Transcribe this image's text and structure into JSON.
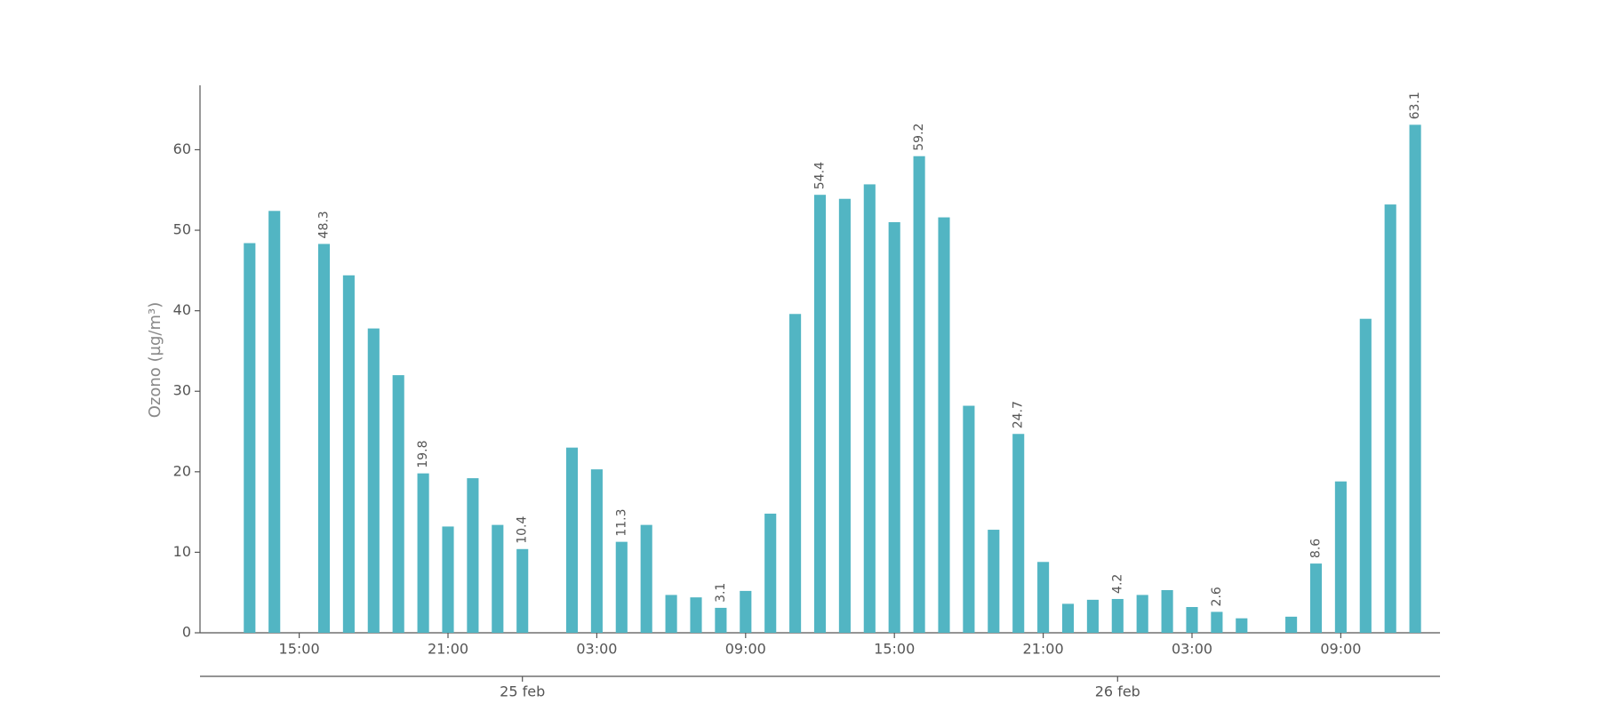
{
  "chart_data": {
    "type": "bar",
    "y_label": "Ozono (µg/m³)",
    "categories": [
      null,
      null,
      "15:00",
      null,
      null,
      null,
      null,
      null,
      "21:00",
      null,
      null,
      null,
      null,
      null,
      "03:00",
      null,
      null,
      null,
      null,
      null,
      "09:00",
      null,
      null,
      null,
      null,
      null,
      "15:00",
      null,
      null,
      null,
      null,
      null,
      "21:00",
      null,
      null,
      null,
      null,
      null,
      "03:00",
      null,
      null,
      null,
      null,
      null,
      "09:00",
      null,
      null,
      null
    ],
    "values": [
      48.4,
      52.4,
      null,
      48.3,
      44.4,
      37.8,
      32.0,
      19.8,
      13.2,
      19.2,
      13.4,
      10.4,
      null,
      23.0,
      20.3,
      11.3,
      13.4,
      4.7,
      4.4,
      3.1,
      5.2,
      14.8,
      39.6,
      54.4,
      53.9,
      55.7,
      51.0,
      59.2,
      51.6,
      28.2,
      12.8,
      24.7,
      8.8,
      3.6,
      4.1,
      4.2,
      4.7,
      5.3,
      3.2,
      2.6,
      1.8,
      null,
      2.0,
      8.6,
      18.8,
      39.0,
      53.2,
      63.1
    ],
    "value_labels": [
      null,
      null,
      null,
      "48.3",
      null,
      null,
      null,
      "19.8",
      null,
      null,
      null,
      "10.4",
      null,
      null,
      null,
      "11.3",
      null,
      null,
      null,
      "3.1",
      null,
      null,
      null,
      "54.4",
      null,
      null,
      null,
      "59.2",
      null,
      null,
      null,
      "24.7",
      null,
      null,
      null,
      "4.2",
      null,
      null,
      null,
      "2.6",
      null,
      null,
      null,
      "8.6",
      null,
      null,
      null,
      "63.1"
    ],
    "day_labels": {
      "labels": [
        "25 feb",
        "26 feb"
      ],
      "positions": [
        11,
        35
      ]
    },
    "color": "#52b5c3",
    "ylim": [
      0,
      68
    ],
    "yticks": [
      0,
      10,
      20,
      30,
      40,
      50,
      60
    ]
  }
}
